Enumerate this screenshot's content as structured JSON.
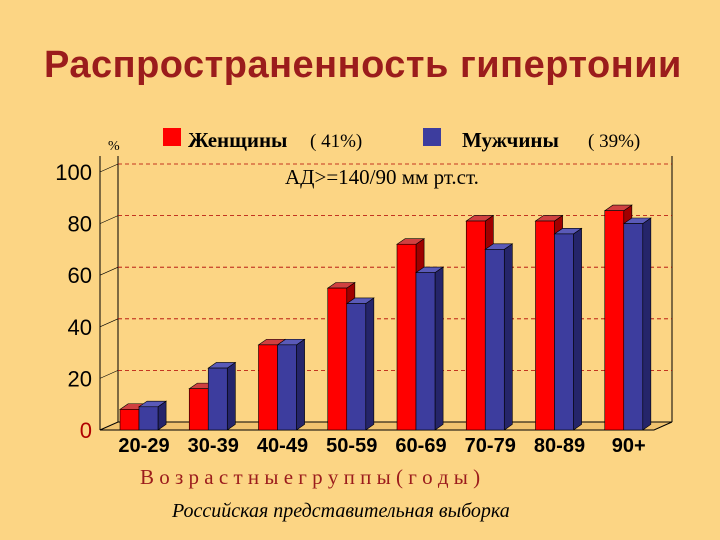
{
  "chart_data": {
    "type": "bar",
    "title": "Распространенность гипертонии",
    "subtitle": "АД>=140/90 мм рт.ст.",
    "unit_label": "%",
    "xlabel": "В о з р а с т н ы е   г р у п п ы  ( г о д ы )",
    "ylabel": "",
    "footnote": "Российская представительная выборка",
    "categories": [
      "20-29",
      "30-39",
      "40-49",
      "50-59",
      "60-69",
      "70-79",
      "80-89",
      "90+"
    ],
    "series": [
      {
        "name": "Женщины",
        "legend_value": "( 41%)",
        "color": "#ff0000",
        "side_color": "#a00000",
        "top_color": "#d04040",
        "values": [
          8,
          16,
          33,
          55,
          72,
          81,
          81,
          85
        ]
      },
      {
        "name": "Мужчины",
        "legend_value": "( 39%)",
        "color": "#3d3d9e",
        "side_color": "#25256a",
        "top_color": "#5a5ab8",
        "values": [
          9,
          24,
          33,
          49,
          61,
          70,
          76,
          80
        ]
      }
    ],
    "y_ticks": [
      "0",
      "20",
      "40",
      "60",
      "80",
      "100"
    ],
    "ylim": [
      0,
      100
    ],
    "grid": true,
    "legend_position": "top"
  }
}
